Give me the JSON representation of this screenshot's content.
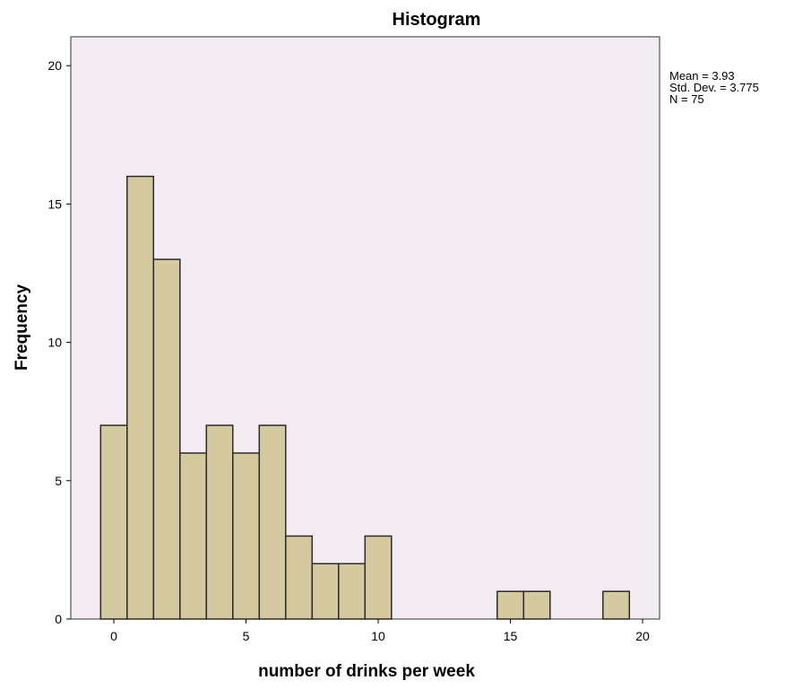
{
  "chart_data": {
    "type": "bar",
    "title": "Histogram",
    "xlabel": "number of drinks per week",
    "ylabel": "Frequency",
    "xlim": [
      -1.5,
      20.5
    ],
    "ylim": [
      0,
      21
    ],
    "x_ticks": [
      0,
      5,
      10,
      15,
      20
    ],
    "y_ticks": [
      0,
      5,
      10,
      15,
      20
    ],
    "bin_width": 1,
    "bins": [
      {
        "center": 0,
        "count": 7
      },
      {
        "center": 1,
        "count": 16
      },
      {
        "center": 2,
        "count": 13
      },
      {
        "center": 3,
        "count": 6
      },
      {
        "center": 4,
        "count": 7
      },
      {
        "center": 5,
        "count": 6
      },
      {
        "center": 6,
        "count": 7
      },
      {
        "center": 7,
        "count": 3
      },
      {
        "center": 8,
        "count": 2
      },
      {
        "center": 9,
        "count": 2
      },
      {
        "center": 10,
        "count": 3
      },
      {
        "center": 15,
        "count": 1
      },
      {
        "center": 16,
        "count": 1
      },
      {
        "center": 19,
        "count": 1
      }
    ],
    "stats": [
      "Mean = 3.93",
      "Std. Dev. = 3.775",
      "N = 75"
    ],
    "grid": false,
    "colors": {
      "plot_background": "#f3ecf3",
      "bar_fill": "#d4c99f",
      "bar_stroke": "#2b2b2b",
      "axis": "#000000",
      "text": "#000000"
    }
  }
}
